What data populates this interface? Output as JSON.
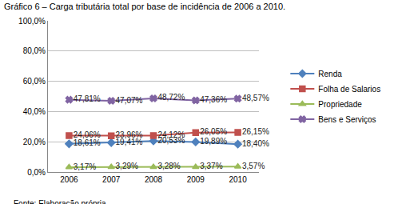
{
  "chart_data": {
    "type": "line",
    "title": "Gráfico 6 – Carga tributária total por base de incidência de 2006 a 2010.",
    "annotations": [
      "Fonte: Elaboração própria"
    ],
    "categories": [
      "2006",
      "2007",
      "2008",
      "2009",
      "2010"
    ],
    "series": [
      {
        "name": "Renda",
        "color": "#4f81bd",
        "marker": "diamond",
        "values": [
          18.61,
          19.41,
          20.53,
          19.89,
          18.4
        ],
        "value_labels": [
          "18,61%",
          "19,41%",
          "20,53%",
          "19,89%",
          "18,40%"
        ]
      },
      {
        "name": "Folha de Salarios",
        "color": "#c0504d",
        "marker": "square",
        "values": [
          24.06,
          23.96,
          24.12,
          26.05,
          26.15
        ],
        "value_labels": [
          "24,06%",
          "23,96%",
          "24,12%",
          "26,05%",
          "26,15%"
        ]
      },
      {
        "name": "Propriedade",
        "color": "#9bbb59",
        "marker": "triangle-up",
        "values": [
          3.17,
          3.29,
          3.28,
          3.37,
          3.57
        ],
        "value_labels": [
          "3,17%",
          "3,29%",
          "3,28%",
          "3,37%",
          "3,57%"
        ]
      },
      {
        "name": "Bens e Serviços",
        "color": "#8064a2",
        "marker": "x",
        "values": [
          47.81,
          47.07,
          48.72,
          47.36,
          48.57
        ],
        "value_labels": [
          "47,81%",
          "47,07%",
          "48,72%",
          "47,36%",
          "48,57%"
        ]
      }
    ],
    "ylim": [
      0,
      100
    ],
    "yticks": [
      {
        "value": 0,
        "label": "0,0%"
      },
      {
        "value": 20,
        "label": "20,0%"
      },
      {
        "value": 40,
        "label": "40,0%"
      },
      {
        "value": 60,
        "label": "60,0%"
      },
      {
        "value": 80,
        "label": "80,0%"
      },
      {
        "value": 100,
        "label": "100,0%"
      }
    ],
    "grid": true,
    "legend": "right",
    "data_labels": true
  }
}
